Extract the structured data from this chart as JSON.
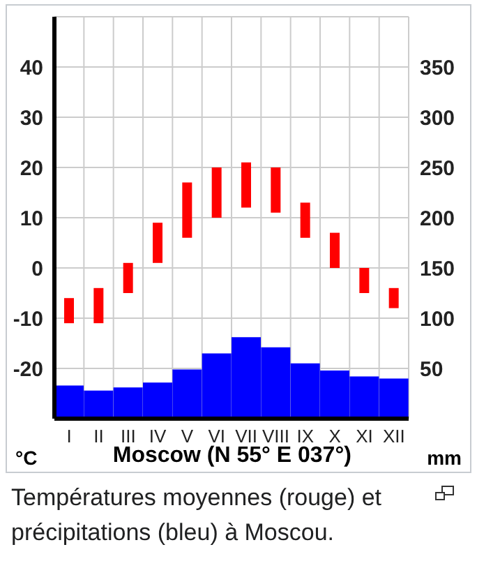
{
  "chart_data": {
    "type": "bar",
    "categories": [
      "I",
      "II",
      "III",
      "IV",
      "V",
      "VI",
      "VII",
      "VIII",
      "IX",
      "X",
      "XI",
      "XII"
    ],
    "series": [
      {
        "axis": "y2",
        "color": "#0000ff",
        "values": [
          33,
          28,
          31,
          36,
          49,
          65,
          81,
          71,
          55,
          48,
          42,
          40
        ]
      },
      {
        "color": "#ff0000",
        "base": [
          -11,
          -11,
          -5,
          1,
          6,
          10,
          12,
          11,
          6,
          0,
          -5,
          -8
        ],
        "values": [
          5,
          7,
          6,
          8,
          11,
          10,
          9,
          9,
          7,
          7,
          5,
          4
        ]
      }
    ],
    "ylim": [
      -30,
      50
    ],
    "yticks": [
      -20,
      -10,
      0,
      10,
      20,
      30,
      40
    ],
    "y2lim": [
      0,
      400
    ],
    "y2ticks": [
      50,
      100,
      150,
      200,
      250,
      300,
      350
    ],
    "xlabel": "Moscow (N 55° E 037°)",
    "ylabel": "°C",
    "y2label": "mm",
    "grid": true,
    "legend": false,
    "annotations": [
      "Températures moyennes (rouge) et précipitations (bleu) à Moscou."
    ]
  }
}
